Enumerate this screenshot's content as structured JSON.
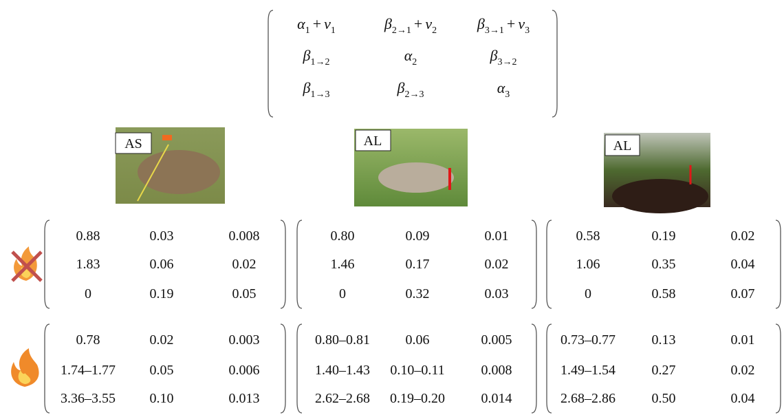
{
  "template_matrix": {
    "rows": [
      [
        {
          "tokens": [
            {
              "text": "α",
              "sub": "1"
            },
            {
              "text": "+"
            },
            {
              "text": "ν",
              "sub": "1"
            }
          ]
        },
        {
          "tokens": [
            {
              "text": "β",
              "sub": "2→1"
            },
            {
              "text": "+"
            },
            {
              "text": "ν",
              "sub": "2"
            }
          ]
        },
        {
          "tokens": [
            {
              "text": "β",
              "sub": "3→1"
            },
            {
              "text": "+"
            },
            {
              "text": "ν",
              "sub": "3"
            }
          ]
        }
      ],
      [
        {
          "tokens": [
            {
              "text": "β",
              "sub": "1→2"
            }
          ]
        },
        {
          "tokens": [
            {
              "text": "α",
              "sub": "2"
            }
          ]
        },
        {
          "tokens": [
            {
              "text": "β",
              "sub": "3→2"
            }
          ]
        }
      ],
      [
        {
          "tokens": [
            {
              "text": "β",
              "sub": "1→3"
            }
          ]
        },
        {
          "tokens": [
            {
              "text": "β",
              "sub": "2→3"
            }
          ]
        },
        {
          "tokens": [
            {
              "text": "α",
              "sub": "3"
            }
          ]
        }
      ]
    ]
  },
  "sites": [
    {
      "label": "AS"
    },
    {
      "label": "AL"
    },
    {
      "label": "AL"
    }
  ],
  "matrices": {
    "unburned": [
      [
        [
          "0.88",
          "0.03",
          "0.008"
        ],
        [
          "1.83",
          "0.06",
          "0.02"
        ],
        [
          "0",
          "0.19",
          "0.05"
        ]
      ],
      [
        [
          "0.80",
          "0.09",
          "0.01"
        ],
        [
          "1.46",
          "0.17",
          "0.02"
        ],
        [
          "0",
          "0.32",
          "0.03"
        ]
      ],
      [
        [
          "0.58",
          "0.19",
          "0.02"
        ],
        [
          "1.06",
          "0.35",
          "0.04"
        ],
        [
          "0",
          "0.58",
          "0.07"
        ]
      ]
    ],
    "burned": [
      [
        [
          "0.78",
          "0.02",
          "0.003"
        ],
        [
          "1.74–1.77",
          "0.05",
          "0.006"
        ],
        [
          "3.36–3.55",
          "0.10",
          "0.013"
        ]
      ],
      [
        [
          "0.80–0.81",
          "0.06",
          "0.005"
        ],
        [
          "1.40–1.43",
          "0.10–0.11",
          "0.008"
        ],
        [
          "2.62–2.68",
          "0.19–0.20",
          "0.014"
        ]
      ],
      [
        [
          "0.73–0.77",
          "0.13",
          "0.01"
        ],
        [
          "1.49–1.54",
          "0.27",
          "0.02"
        ],
        [
          "2.68–2.86",
          "0.50",
          "0.04"
        ]
      ]
    ]
  }
}
